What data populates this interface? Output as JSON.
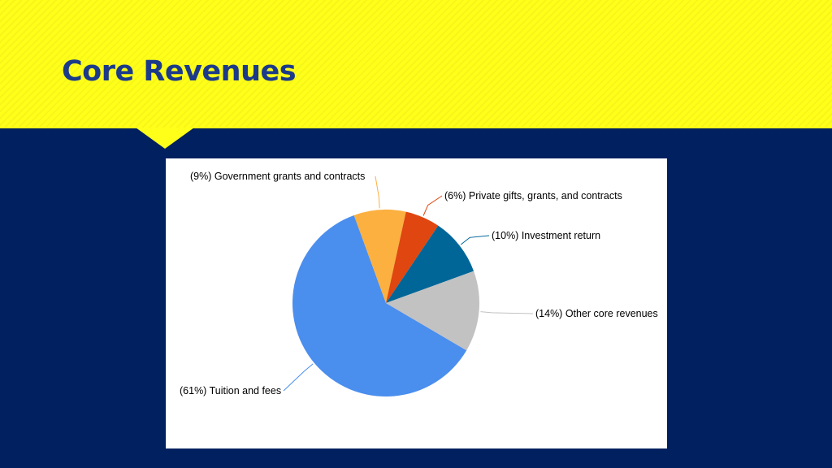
{
  "slide": {
    "title": "Core Revenues"
  },
  "chart_data": {
    "type": "pie",
    "title": "",
    "slices": [
      {
        "label": "(61%) Tuition and fees",
        "value": 61,
        "color": "#4a8eee"
      },
      {
        "label": "(9%) Government grants and contracts",
        "value": 9,
        "color": "#fbb040"
      },
      {
        "label": "(6%) Private gifts, grants, and contracts",
        "value": 6,
        "color": "#e0460f"
      },
      {
        "label": "(10%) Investment return",
        "value": 10,
        "color": "#006698"
      },
      {
        "label": "(14%) Other core revenues",
        "value": 14,
        "color": "#c2c2c2"
      }
    ],
    "legend": "none (callout labels)"
  }
}
